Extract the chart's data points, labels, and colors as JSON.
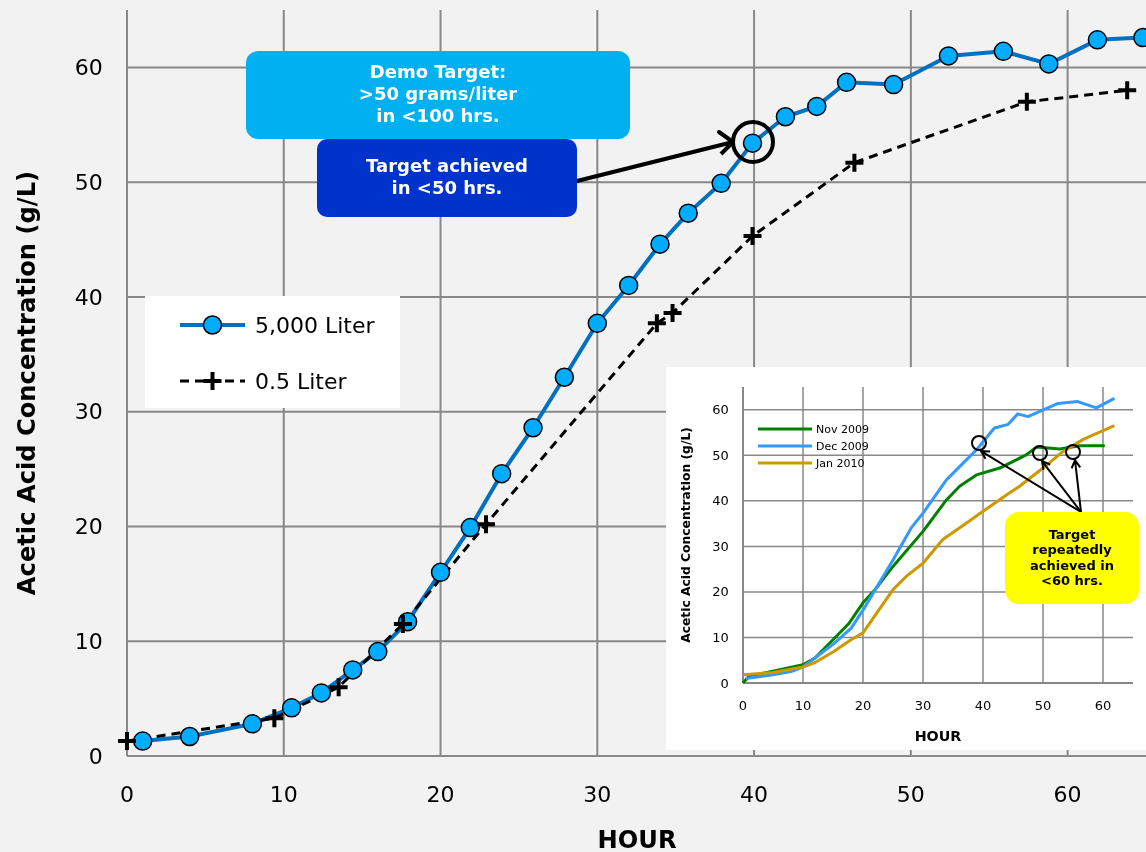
{
  "chart_data": [
    {
      "type": "line",
      "xlabel": "HOUR",
      "ylabel": "Acetic Acid Concentration (g/L)",
      "xlim": [
        0,
        65
      ],
      "ylim": [
        0,
        65
      ],
      "xticks": [
        0,
        10,
        20,
        30,
        40,
        50,
        60
      ],
      "yticks": [
        0,
        10,
        20,
        30,
        40,
        50,
        60
      ],
      "grid": true,
      "legend": "left",
      "annotations": [
        "Demo Target:\n>50 grams/liter\nin <100 hrs.",
        "Target achieved\nin <50 hrs."
      ],
      "series": [
        {
          "name": "5,000 Liter",
          "color": "#0070c0",
          "marker": "circle",
          "line_style": "solid",
          "x": [
            1,
            4,
            8,
            10.5,
            12.4,
            14.4,
            16,
            17.9,
            20,
            21.9,
            23.9,
            25.9,
            27.9,
            30,
            32,
            34,
            35.8,
            37.9,
            39.9,
            42,
            44,
            45.9,
            48.9,
            52.4,
            55.9,
            58.8,
            61.9,
            64.8
          ],
          "values": [
            1.3,
            1.7,
            2.8,
            4.2,
            5.5,
            7.5,
            9.1,
            11.7,
            16,
            19.9,
            24.6,
            28.6,
            33,
            37.7,
            41,
            44.6,
            47.3,
            49.9,
            53.4,
            55.7,
            56.6,
            58.7,
            58.5,
            61,
            61.4,
            60.3,
            62.4,
            62.6
          ]
        },
        {
          "name": "0.5 Liter",
          "color": "#000000",
          "marker": "cross",
          "line_style": "dashed",
          "x": [
            0,
            9.4,
            13.5,
            17.6,
            22.9,
            33.8,
            34.8,
            39.9,
            46.4,
            57.4,
            63.8
          ],
          "values": [
            1.3,
            3.3,
            6,
            11.5,
            20.2,
            37.7,
            38.6,
            45.3,
            51.7,
            57,
            58
          ]
        }
      ]
    },
    {
      "type": "line",
      "xlabel": "HOUR",
      "ylabel": "Acetic Acid Concentration (g/L)",
      "xlim": [
        0,
        65
      ],
      "ylim": [
        0,
        65
      ],
      "xticks": [
        0,
        10,
        20,
        30,
        40,
        50,
        60
      ],
      "yticks": [
        0,
        10,
        20,
        30,
        40,
        50,
        60
      ],
      "grid": true,
      "legend": "top left",
      "annotations": [
        {
          "text": "Target\nrepeatedly\nachieved in\n<60 hrs.",
          "x": 49.5,
          "y": 50.5
        }
      ],
      "series": [
        {
          "name": "Nov 2009",
          "color": "#008000",
          "x": [
            0,
            1,
            10,
            12,
            15,
            17.6,
            20,
            22,
            25,
            30,
            33.9,
            36.1,
            38.9,
            42.8,
            47.2,
            48.9,
            52.8,
            56.1,
            60.3
          ],
          "values": [
            0,
            1.5,
            4,
            5.5,
            9.5,
            13,
            17.6,
            20.5,
            25.6,
            33.3,
            40.2,
            43.2,
            45.7,
            47.2,
            50.1,
            51.8,
            51.4,
            52.1,
            52.1
          ]
        },
        {
          "name": "Dec 2009",
          "color": "#3399ff",
          "x": [
            0.5,
            5,
            8,
            10,
            15,
            18,
            20,
            25,
            28,
            30,
            33.9,
            38.9,
            41.9,
            44.2,
            45.8,
            47.5,
            52.5,
            55.8,
            58.9,
            61.9
          ],
          "values": [
            1,
            1.8,
            2.5,
            3.5,
            8.5,
            12,
            16,
            27,
            34,
            37.3,
            44.6,
            51.2,
            56,
            56.8,
            59.1,
            58.5,
            61.4,
            61.8,
            60.4,
            62.5
          ]
        },
        {
          "name": "Jan 2010",
          "color": "#cc9900",
          "x": [
            0,
            5,
            10,
            12,
            15,
            18,
            20,
            25,
            27.2,
            30,
            33.3,
            37.2,
            40,
            43.9,
            46.1,
            50,
            53.3,
            56.7,
            61.9
          ],
          "values": [
            1.8,
            2.3,
            3.5,
            4.5,
            6.8,
            9.5,
            11,
            20.5,
            23.4,
            26.3,
            31.5,
            35.1,
            37.7,
            41.3,
            43.2,
            47.2,
            50.8,
            53.5,
            56.5
          ]
        }
      ]
    }
  ]
}
